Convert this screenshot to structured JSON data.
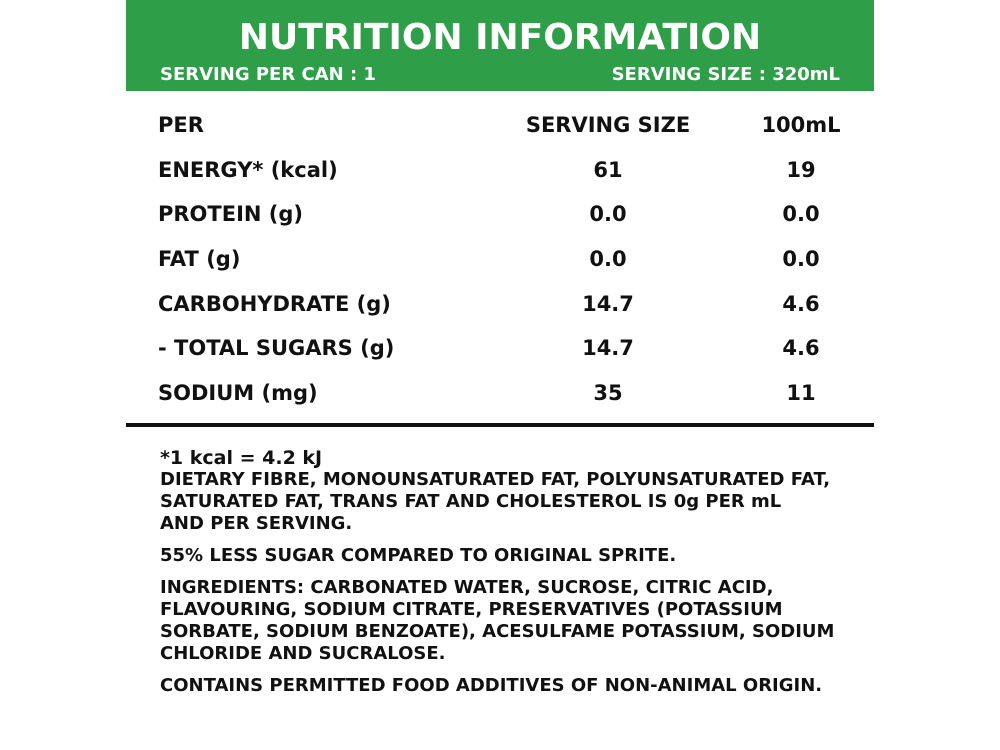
{
  "colors": {
    "header_background": "#2e9e48",
    "header_text": "#ffffff",
    "body_text": "#111111"
  },
  "header": {
    "title": "NUTRITION INFORMATION",
    "serving_per_can": "SERVING PER CAN : 1",
    "serving_size": "SERVING SIZE : 320mL"
  },
  "table": {
    "headers": [
      "PER",
      "SERVING SIZE",
      "100mL"
    ],
    "rows": [
      [
        "ENERGY* (kcal)",
        "61",
        "19"
      ],
      [
        "PROTEIN (g)",
        "0.0",
        "0.0"
      ],
      [
        "FAT (g)",
        "0.0",
        "0.0"
      ],
      [
        "CARBOHYDRATE (g)",
        "14.7",
        "4.6"
      ],
      [
        "- TOTAL SUGARS (g)",
        "14.7",
        "4.6"
      ],
      [
        "SODIUM (mg)",
        "35",
        "11"
      ]
    ]
  },
  "notes": {
    "kcal": "*1 kcal = 4.2 kJ",
    "fibre_lines": [
      "DIETARY FIBRE, MONOUNSATURATED FAT, POLYUNSATURATED FAT,",
      "SATURATED FAT, TRANS FAT AND CHOLESTEROL IS 0g PER mL",
      "AND PER SERVING."
    ],
    "less_sugar": "55% LESS SUGAR COMPARED TO ORIGINAL SPRITE.",
    "ingredients_lines": [
      "INGREDIENTS: CARBONATED WATER, SUCROSE, CITRIC ACID,",
      "FLAVOURING, SODIUM CITRATE, PRESERVATIVES (POTASSIUM",
      "SORBATE, SODIUM BENZOATE), ACESULFAME POTASSIUM, SODIUM",
      "CHLORIDE AND SUCRALOSE."
    ],
    "additives": "CONTAINS PERMITTED FOOD ADDITIVES OF NON-ANIMAL ORIGIN."
  }
}
